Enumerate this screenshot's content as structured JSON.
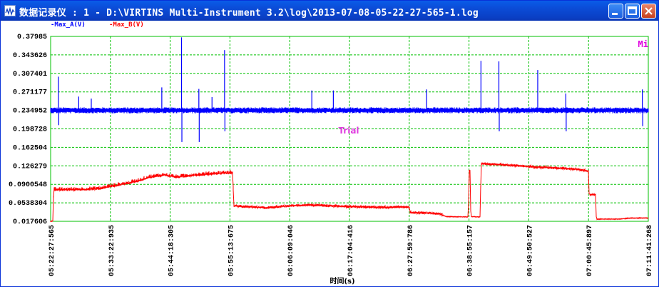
{
  "window": {
    "title": "数据记录仪 : 1 - D:\\VIRTINS Multi-Instrument 3.2\\log\\2013-07-08-05-22-27-565-1.log"
  },
  "legend": {
    "series_a": "-Max_A(V)",
    "series_b": "-Max_B(V)",
    "color_a": "#0000ff",
    "color_b": "#ff0000"
  },
  "overlay": {
    "watermark": "Trial",
    "mi_label": "Mi"
  },
  "chart_data": {
    "type": "line",
    "xlabel": "时间(s)",
    "ylabel": "",
    "ylim": [
      0.017606,
      0.37985
    ],
    "y_ticks": [
      "0.37985",
      "0.343626",
      "0.307401",
      "0.271177",
      "0.234952",
      "0.198728",
      "0.162504",
      "0.126279",
      "0.0900548",
      "0.0538304",
      "0.017606"
    ],
    "x_ticks": [
      "05:22:27:565",
      "05:33:22:935",
      "05:44:18:305",
      "05:55:13:675",
      "06:06:09:046",
      "06:17:04:416",
      "06:27:59:786",
      "06:38:55:157",
      "06:49:50:527",
      "07:00:45:897",
      "07:11:41:268"
    ],
    "grid": true,
    "series": [
      {
        "name": "Max_A(V)",
        "color": "#0000ff",
        "baseline": 0.235,
        "noise": 0.006,
        "spikes": [
          {
            "t": 0.013,
            "v": 0.301
          },
          {
            "t": 0.047,
            "v": 0.262
          },
          {
            "t": 0.068,
            "v": 0.258
          },
          {
            "t": 0.186,
            "v": 0.28
          },
          {
            "t": 0.219,
            "v": 0.378
          },
          {
            "t": 0.248,
            "v": 0.277
          },
          {
            "t": 0.27,
            "v": 0.261
          },
          {
            "t": 0.291,
            "v": 0.353
          },
          {
            "t": 0.437,
            "v": 0.274
          },
          {
            "t": 0.473,
            "v": 0.274
          },
          {
            "t": 0.629,
            "v": 0.276
          },
          {
            "t": 0.72,
            "v": 0.332
          },
          {
            "t": 0.75,
            "v": 0.331
          },
          {
            "t": 0.815,
            "v": 0.314
          },
          {
            "t": 0.862,
            "v": 0.268
          },
          {
            "t": 0.99,
            "v": 0.276
          }
        ],
        "dips": [
          {
            "t": 0.013,
            "v": 0.206
          },
          {
            "t": 0.219,
            "v": 0.173
          },
          {
            "t": 0.248,
            "v": 0.173
          },
          {
            "t": 0.291,
            "v": 0.194
          },
          {
            "t": 0.75,
            "v": 0.194
          },
          {
            "t": 0.862,
            "v": 0.194
          },
          {
            "t": 0.99,
            "v": 0.204
          }
        ]
      },
      {
        "name": "Max_B(V)",
        "color": "#ff0000",
        "noise": 0.0025,
        "points": [
          {
            "t": 0.0,
            "v": 0.018
          },
          {
            "t": 0.004,
            "v": 0.018
          },
          {
            "t": 0.005,
            "v": 0.079
          },
          {
            "t": 0.06,
            "v": 0.08
          },
          {
            "t": 0.085,
            "v": 0.082
          },
          {
            "t": 0.095,
            "v": 0.085
          },
          {
            "t": 0.11,
            "v": 0.088
          },
          {
            "t": 0.13,
            "v": 0.092
          },
          {
            "t": 0.15,
            "v": 0.098
          },
          {
            "t": 0.165,
            "v": 0.104
          },
          {
            "t": 0.19,
            "v": 0.108
          },
          {
            "t": 0.21,
            "v": 0.104
          },
          {
            "t": 0.24,
            "v": 0.108
          },
          {
            "t": 0.275,
            "v": 0.111
          },
          {
            "t": 0.305,
            "v": 0.113
          },
          {
            "t": 0.306,
            "v": 0.048
          },
          {
            "t": 0.36,
            "v": 0.044
          },
          {
            "t": 0.4,
            "v": 0.048
          },
          {
            "t": 0.43,
            "v": 0.05
          },
          {
            "t": 0.48,
            "v": 0.047
          },
          {
            "t": 0.56,
            "v": 0.045
          },
          {
            "t": 0.6,
            "v": 0.046
          },
          {
            "t": 0.601,
            "v": 0.035
          },
          {
            "t": 0.65,
            "v": 0.033
          },
          {
            "t": 0.661,
            "v": 0.027
          },
          {
            "t": 0.699,
            "v": 0.026
          },
          {
            "t": 0.7,
            "v": 0.117
          },
          {
            "t": 0.702,
            "v": 0.117
          },
          {
            "t": 0.703,
            "v": 0.027
          },
          {
            "t": 0.719,
            "v": 0.026
          },
          {
            "t": 0.72,
            "v": 0.131
          },
          {
            "t": 0.76,
            "v": 0.128
          },
          {
            "t": 0.83,
            "v": 0.123
          },
          {
            "t": 0.88,
            "v": 0.12
          },
          {
            "t": 0.9,
            "v": 0.116
          },
          {
            "t": 0.901,
            "v": 0.07
          },
          {
            "t": 0.912,
            "v": 0.07
          },
          {
            "t": 0.913,
            "v": 0.022
          },
          {
            "t": 0.95,
            "v": 0.022
          },
          {
            "t": 0.97,
            "v": 0.024
          },
          {
            "t": 1.0,
            "v": 0.024
          }
        ]
      }
    ]
  }
}
